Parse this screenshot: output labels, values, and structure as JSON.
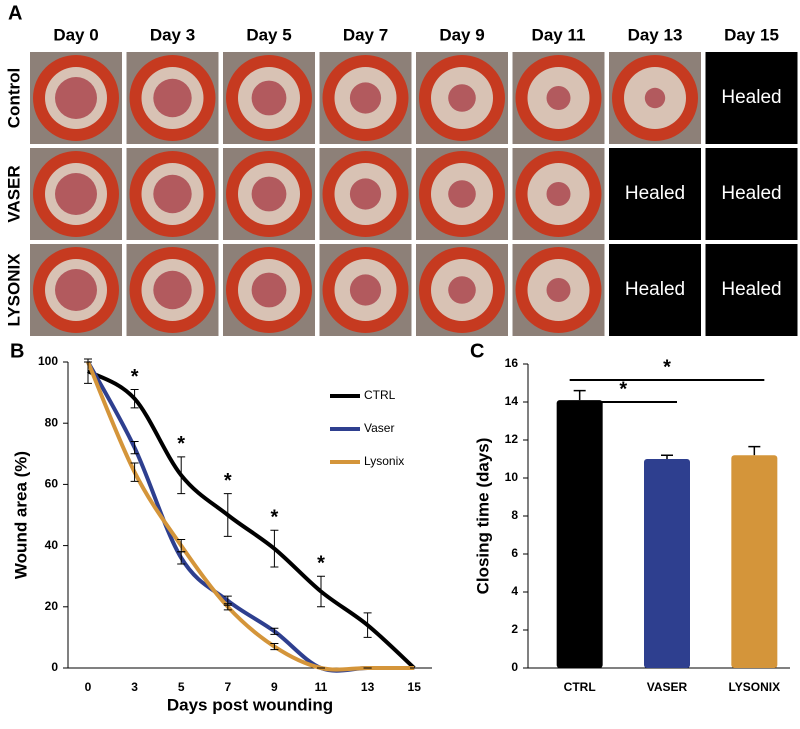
{
  "panel_a": {
    "label": "A",
    "columns": [
      "Day 0",
      "Day 3",
      "Day 5",
      "Day 7",
      "Day 9",
      "Day 11",
      "Day 13",
      "Day 15"
    ],
    "rows": [
      {
        "label": "Control",
        "cells": [
          null,
          null,
          null,
          null,
          null,
          null,
          null,
          "Healed"
        ]
      },
      {
        "label": "VASER",
        "cells": [
          null,
          null,
          null,
          null,
          null,
          null,
          "Healed",
          "Healed"
        ]
      },
      {
        "label": "LYSONIX",
        "cells": [
          null,
          null,
          null,
          null,
          null,
          null,
          "Healed",
          "Healed"
        ]
      }
    ]
  },
  "chart_data": [
    {
      "type": "line",
      "panel_label": "B",
      "xlabel": "Days post wounding",
      "ylabel": "Wound area (%)",
      "categories": [
        "0",
        "3",
        "5",
        "7",
        "9",
        "11",
        "13",
        "15"
      ],
      "ylim": [
        0,
        100
      ],
      "yticks": [
        0,
        20,
        40,
        60,
        80,
        100
      ],
      "series": [
        {
          "name": "CTRL",
          "color": "#000000",
          "values": [
            97,
            88,
            63,
            50,
            39,
            25,
            14,
            0
          ],
          "errors": [
            4,
            3,
            6,
            7,
            6,
            5,
            4,
            0
          ]
        },
        {
          "name": "Vaser",
          "color": "#2e3f8f",
          "values": [
            100,
            72,
            36,
            22,
            12,
            0,
            0,
            0
          ],
          "errors": [
            0,
            2,
            2,
            1.5,
            1,
            0,
            0,
            0
          ]
        },
        {
          "name": "Lysonix",
          "color": "#d4953a",
          "values": [
            100,
            64,
            40,
            20,
            7,
            0,
            0,
            0
          ],
          "errors": [
            0,
            3,
            2,
            1,
            1,
            0,
            0,
            0
          ]
        }
      ],
      "significance_marks": [
        null,
        "*",
        "*",
        "*",
        "*",
        "*",
        null,
        null
      ],
      "legend": "upper right"
    },
    {
      "type": "bar",
      "panel_label": "C",
      "ylabel": "Closing time (days)",
      "categories": [
        "CTRL",
        "VASER",
        "LYSONIX"
      ],
      "values": [
        14.1,
        11.0,
        11.2
      ],
      "errors": [
        0.5,
        0.2,
        0.45
      ],
      "colors": [
        "#000000",
        "#2e3f8f",
        "#d4953a"
      ],
      "ylim": [
        0,
        16
      ],
      "yticks": [
        0,
        2,
        4,
        6,
        8,
        10,
        12,
        14,
        16
      ],
      "brackets": [
        {
          "categories": [
            0,
            1
          ],
          "label": "*"
        },
        {
          "categories": [
            0,
            2
          ],
          "label": "*"
        }
      ]
    }
  ]
}
